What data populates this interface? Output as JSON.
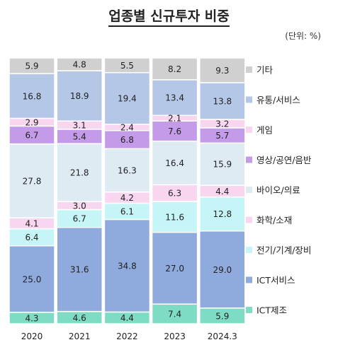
{
  "title": "업종별 신규투자 비중",
  "unit": "(단위: %)",
  "chart_data": {
    "type": "bar",
    "stacked": true,
    "title": "업종별 신규투자 비중",
    "unit": "(단위: %)",
    "categories": [
      "2020",
      "2021",
      "2022",
      "2023",
      "2024.3"
    ],
    "ylim": [
      0,
      100
    ],
    "grid": false,
    "legend_position": "right",
    "series": [
      {
        "name": "ICT제조",
        "color": "#7fdcc4",
        "values": [
          4.3,
          4.6,
          4.4,
          7.4,
          5.9
        ]
      },
      {
        "name": "ICT서비스",
        "color": "#8faadc",
        "values": [
          25.0,
          31.6,
          34.8,
          27.0,
          29.0
        ]
      },
      {
        "name": "전기/기계/장비",
        "color": "#c5f5f7",
        "values": [
          6.4,
          6.7,
          6.1,
          11.6,
          12.8
        ]
      },
      {
        "name": "화학/소재",
        "color": "#f9d6f0",
        "values": [
          4.1,
          3.0,
          4.2,
          6.3,
          4.4
        ]
      },
      {
        "name": "바이오/의료",
        "color": "#deebf3",
        "values": [
          27.8,
          21.8,
          16.3,
          16.4,
          15.9
        ]
      },
      {
        "name": "영상/공연/음반",
        "color": "#c49be8",
        "values": [
          6.7,
          5.4,
          6.8,
          7.6,
          5.7
        ]
      },
      {
        "name": "게임",
        "color": "#f9d6f0",
        "values": [
          2.9,
          3.1,
          2.4,
          2.1,
          3.2
        ]
      },
      {
        "name": "유통/서비스",
        "color": "#b4c7e7",
        "values": [
          16.8,
          18.9,
          19.4,
          13.4,
          13.8
        ]
      },
      {
        "name": "기타",
        "color": "#d0d0d0",
        "values": [
          5.9,
          4.8,
          5.5,
          8.2,
          9.3
        ]
      }
    ]
  }
}
